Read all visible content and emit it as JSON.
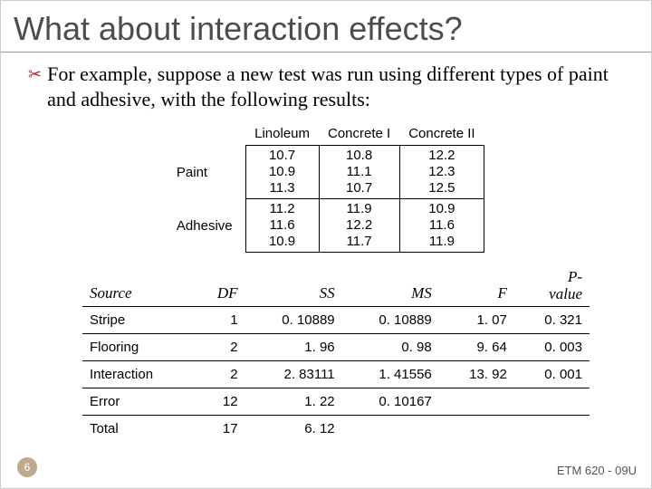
{
  "title": "What about interaction effects?",
  "bullet": {
    "text": "For example, suppose a new test was run using different types of paint and adhesive, with the following results:"
  },
  "data_table": {
    "col_headers": [
      "Linoleum",
      "Concrete I",
      "Concrete II"
    ],
    "row_headers": [
      "Paint",
      "Adhesive"
    ],
    "cells": [
      [
        [
          "10.7",
          "10.9",
          "11.3"
        ],
        [
          "10.8",
          "11.1",
          "10.7"
        ],
        [
          "12.2",
          "12.3",
          "12.5"
        ]
      ],
      [
        [
          "11.2",
          "11.6",
          "10.9"
        ],
        [
          "11.9",
          "12.2",
          "11.7"
        ],
        [
          "10.9",
          "11.6",
          "11.9"
        ]
      ]
    ]
  },
  "anova": {
    "headers": {
      "source": "Source",
      "df": "DF",
      "ss": "SS",
      "ms": "MS",
      "f": "F",
      "p1": "P-",
      "p2": "value"
    },
    "rows": [
      {
        "source": "Stripe",
        "df": "1",
        "ss": "0. 10889",
        "ms": "0. 10889",
        "f": "1. 07",
        "p": "0. 321"
      },
      {
        "source": "Flooring",
        "df": "2",
        "ss": "1. 96",
        "ms": "0. 98",
        "f": "9. 64",
        "p": "0. 003"
      },
      {
        "source": "Interaction",
        "df": "2",
        "ss": "2. 83111",
        "ms": "1. 41556",
        "f": "13. 92",
        "p": "0. 001"
      },
      {
        "source": "Error",
        "df": "12",
        "ss": "1. 22",
        "ms": "0. 10167",
        "f": "",
        "p": ""
      },
      {
        "source": "Total",
        "df": "17",
        "ss": "6. 12",
        "ms": "",
        "f": "",
        "p": ""
      }
    ]
  },
  "page_number": "6",
  "footer": "ETM 620 - 09U"
}
